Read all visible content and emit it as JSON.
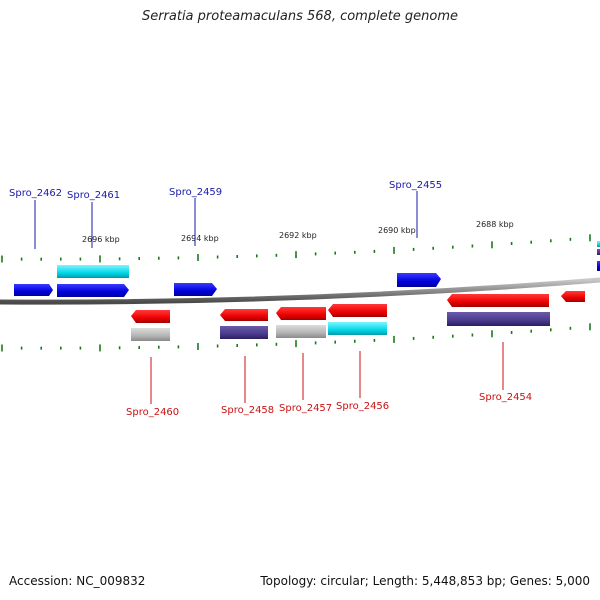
{
  "title": "Serratia proteamaculans 568, complete genome",
  "footer": {
    "accession": "Accession: NC_009832",
    "topology": "Topology: circular; Length: 5,448,853 bp; Genes: 5,000"
  },
  "colors": {
    "forward_label": "#1a1aaa",
    "reverse_label": "#cc1111",
    "tick": "#1a7a1a",
    "backbone": "#8a8a8a"
  },
  "scale_labels": [
    "2696 kbp",
    "2694 kbp",
    "2692 kbp",
    "2690 kbp",
    "2688 kbp"
  ],
  "genes_forward": [
    {
      "label": "Spro_2462"
    },
    {
      "label": "Spro_2461"
    },
    {
      "label": "Spro_2459"
    },
    {
      "label": "Spro_2455"
    }
  ],
  "genes_reverse": [
    {
      "label": "Spro_2460"
    },
    {
      "label": "Spro_2458"
    },
    {
      "label": "Spro_2457"
    },
    {
      "label": "Spro_2456"
    },
    {
      "label": "Spro_2454"
    }
  ]
}
